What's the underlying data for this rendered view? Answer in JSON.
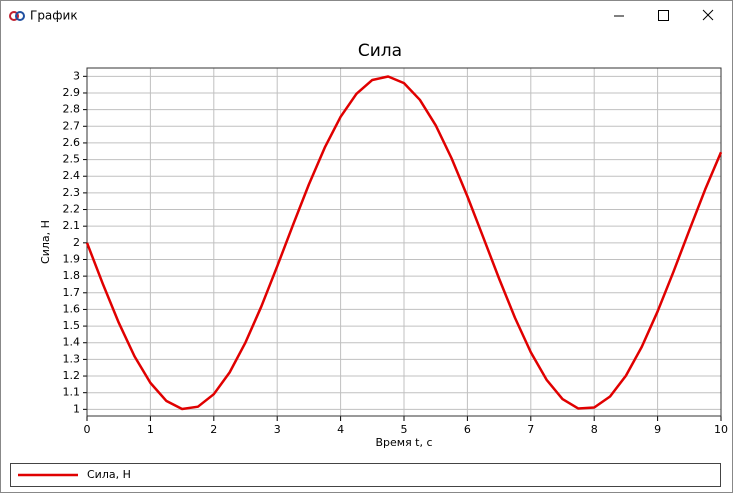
{
  "window": {
    "title": "График"
  },
  "chart_data": {
    "type": "line",
    "title": "Сила",
    "x_label": "Время t, с",
    "y_label": "Сила, Н",
    "x": [
      0,
      0.25,
      0.5,
      0.75,
      1,
      1.25,
      1.5,
      1.75,
      2,
      2.25,
      2.5,
      2.75,
      3,
      3.25,
      3.5,
      3.75,
      4,
      4.25,
      4.5,
      4.75,
      5,
      5.25,
      5.5,
      5.75,
      6,
      6.25,
      6.5,
      6.75,
      7,
      7.25,
      7.5,
      7.75,
      8,
      8.25,
      8.5,
      8.75,
      9,
      9.25,
      9.5,
      9.75,
      10
    ],
    "series": [
      {
        "name": "Сила, Н",
        "color": "#e00000",
        "values": [
          2,
          1.753,
          1.521,
          1.318,
          1.159,
          1.051,
          1.002,
          1.016,
          1.091,
          1.222,
          1.402,
          1.618,
          1.859,
          2.108,
          2.351,
          2.572,
          2.757,
          2.895,
          2.978,
          2.999,
          2.959,
          2.859,
          2.706,
          2.508,
          2.279,
          2.033,
          1.785,
          1.55,
          1.343,
          1.177,
          1.062,
          1.005,
          1.011,
          1.077,
          1.202,
          1.375,
          1.588,
          1.826,
          2.075,
          2.32,
          2.544
        ]
      }
    ],
    "xlim": [
      0,
      10
    ],
    "xticks": [
      0,
      1,
      2,
      3,
      4,
      5,
      6,
      7,
      8,
      9,
      10
    ],
    "ylim": [
      0.96,
      3.05
    ],
    "yticks": [
      1,
      1.1,
      1.2,
      1.3,
      1.4,
      1.5,
      1.6,
      1.7,
      1.8,
      1.9,
      2,
      2.1,
      2.2,
      2.3,
      2.4,
      2.5,
      2.6,
      2.7,
      2.8,
      2.9,
      3
    ],
    "grid": true,
    "legend": "bottom"
  }
}
